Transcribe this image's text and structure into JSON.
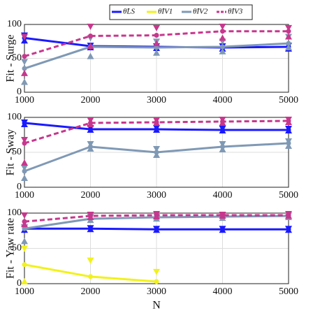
{
  "chart_data": [
    {
      "type": "line",
      "ylabel": "Fit - Surge",
      "x": [
        1000,
        2000,
        3000,
        4000,
        5000
      ],
      "xlim": [
        1000,
        5000
      ],
      "xticks": [
        1000,
        2000,
        3000,
        4000,
        5000
      ],
      "ylim": [
        0,
        100
      ],
      "yticks": [
        0,
        50,
        100
      ],
      "grid": true,
      "legend": "top",
      "series": [
        {
          "name": "θ̂LS",
          "color": "#1a1aff",
          "dashed": false,
          "values": [
            80,
            68,
            67,
            66,
            67
          ],
          "max": [
            84,
            69,
            68,
            68,
            69
          ],
          "min": [
            76,
            66,
            65,
            64,
            64
          ]
        },
        {
          "name": "θ̂IV1",
          "color": "#f2f21a",
          "dashed": false,
          "values": [
            null,
            null,
            null,
            null,
            null
          ],
          "max": [
            null,
            null,
            null,
            null,
            null
          ],
          "min": [
            null,
            null,
            null,
            null,
            null
          ]
        },
        {
          "name": "θ̂IV2",
          "color": "#7f99b5",
          "dashed": false,
          "values": [
            35,
            67,
            66,
            67,
            72
          ],
          "max": [
            45,
            80,
            75,
            75,
            82
          ],
          "min": [
            15,
            53,
            58,
            60,
            66
          ]
        },
        {
          "name": "θ̂IV3",
          "color": "#c7378d",
          "dashed": true,
          "values": [
            53,
            83,
            84,
            90,
            90
          ],
          "max": [
            82,
            97,
            95,
            97,
            95
          ],
          "min": [
            28,
            68,
            72,
            80,
            82
          ]
        }
      ]
    },
    {
      "type": "line",
      "ylabel": "Fit - Sway",
      "x": [
        1000,
        2000,
        3000,
        4000,
        5000
      ],
      "xlim": [
        1000,
        5000
      ],
      "xticks": [
        1000,
        2000,
        3000,
        4000,
        5000
      ],
      "ylim": [
        0,
        100
      ],
      "yticks": [
        0,
        50,
        100
      ],
      "grid": true,
      "series": [
        {
          "color": "#1a1aff",
          "dashed": false,
          "values": [
            92,
            83,
            83,
            82,
            82
          ],
          "max": [
            93,
            85,
            85,
            84,
            84
          ],
          "min": [
            90,
            82,
            82,
            81,
            81
          ]
        },
        {
          "color": "#f2f21a",
          "dashed": false,
          "values": [
            null,
            null,
            null,
            null,
            null
          ],
          "max": [
            null,
            null,
            null,
            null,
            null
          ],
          "min": [
            null,
            null,
            null,
            null,
            null
          ]
        },
        {
          "color": "#7f99b5",
          "dashed": false,
          "values": [
            23,
            58,
            50,
            58,
            63
          ],
          "max": [
            28,
            62,
            55,
            62,
            66
          ],
          "min": [
            13,
            55,
            46,
            54,
            59
          ]
        },
        {
          "color": "#c7378d",
          "dashed": true,
          "values": [
            63,
            92,
            93,
            94,
            95
          ],
          "max": [
            68,
            96,
            96,
            97,
            97
          ],
          "min": [
            35,
            90,
            92,
            92,
            93
          ]
        }
      ]
    },
    {
      "type": "line",
      "ylabel": "Fit - Yaw rate",
      "xlabel": "N",
      "x": [
        1000,
        2000,
        3000,
        4000,
        5000
      ],
      "xlim": [
        1000,
        5000
      ],
      "xticks": [
        1000,
        2000,
        3000,
        4000,
        5000
      ],
      "ylim": [
        0,
        100
      ],
      "yticks": [
        0,
        50,
        100
      ],
      "grid": true,
      "series": [
        {
          "color": "#1a1aff",
          "dashed": false,
          "values": [
            78,
            78,
            77,
            77,
            77
          ],
          "max": [
            80,
            79,
            78,
            78,
            78
          ],
          "min": [
            76,
            77,
            76,
            76,
            76
          ]
        },
        {
          "color": "#f2f21a",
          "dashed": false,
          "values": [
            27,
            10,
            3,
            null,
            null
          ],
          "max": [
            50,
            33,
            17,
            null,
            null
          ],
          "min": [
            3,
            null,
            null,
            null,
            null
          ]
        },
        {
          "color": "#7f99b5",
          "dashed": false,
          "values": [
            78,
            92,
            94,
            95,
            96
          ],
          "max": [
            80,
            95,
            96,
            96,
            97
          ],
          "min": [
            60,
            90,
            92,
            93,
            94
          ]
        },
        {
          "color": "#c7378d",
          "dashed": true,
          "values": [
            88,
            96,
            97,
            97,
            97
          ],
          "max": [
            97,
            98,
            99,
            98,
            99
          ],
          "min": [
            84,
            94,
            95,
            96,
            96
          ]
        }
      ]
    }
  ]
}
